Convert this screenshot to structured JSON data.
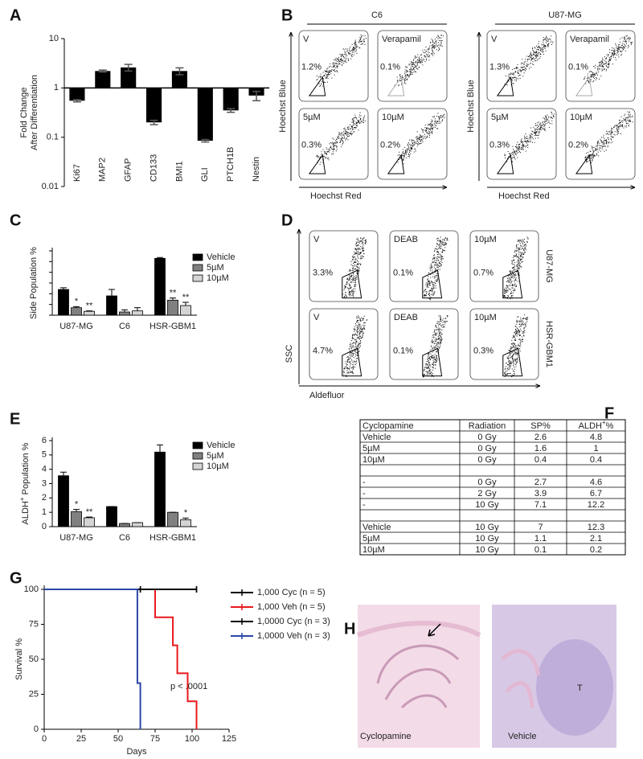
{
  "panel_labels": [
    "A",
    "B",
    "C",
    "D",
    "E",
    "F",
    "G",
    "H"
  ],
  "chart_data": [
    {
      "type": "bar",
      "scale": "log",
      "bar_base": 1,
      "color": "#000000",
      "categories": [
        "Ki67",
        "MAP2",
        "GFAP",
        "CD133",
        "BMI1",
        "GLI",
        "PTCH1B",
        "Nestin"
      ],
      "values": [
        0.55,
        2.2,
        2.6,
        0.2,
        2.2,
        0.085,
        0.35,
        0.7
      ],
      "errors": [
        0.03,
        0.1,
        0.4,
        0.02,
        0.35,
        0.005,
        0.03,
        0.15
      ],
      "ylabel": [
        "Fold Change",
        "After Differentiation"
      ],
      "ylim": [
        0.01,
        10
      ],
      "yticks": [
        0.01,
        0.1,
        1,
        10
      ]
    },
    {
      "type": "grouped_bar",
      "categories": [
        "U87-MG",
        "C6",
        "HSR-GBM1"
      ],
      "series": [
        {
          "name": "Vehicle",
          "color": "#000000",
          "values": [
            1.2,
            0.9,
            2.65
          ],
          "errors": [
            0.08,
            0.3,
            0.04
          ]
        },
        {
          "name": "5µM",
          "color": "#808080",
          "values": [
            0.35,
            0.15,
            0.7
          ],
          "errors": [
            0.05,
            0.1,
            0.1
          ],
          "stars": [
            "*",
            null,
            "**"
          ]
        },
        {
          "name": "10µM",
          "color": "#d4d4d4",
          "values": [
            0.18,
            0.2,
            0.45
          ],
          "errors": [
            0.02,
            0.15,
            0.15
          ],
          "stars": [
            "**",
            null,
            "**"
          ]
        }
      ],
      "ylabel": [
        "Side Population %"
      ],
      "ylim": [
        0,
        3
      ],
      "yticks": [
        0,
        0.5,
        1,
        1.5,
        2,
        2.5,
        3
      ],
      "ytick_labels": false
    },
    {
      "type": "grouped_bar",
      "categories": [
        "U87-MG",
        "C6",
        "HSR-GBM1"
      ],
      "series": [
        {
          "name": "Vehicle",
          "color": "#000000",
          "values": [
            3.55,
            1.4,
            5.2
          ],
          "errors": [
            0.25,
            0,
            0.5
          ]
        },
        {
          "name": "5µM",
          "color": "#808080",
          "values": [
            1.05,
            0.22,
            1.0
          ],
          "errors": [
            0.15,
            0,
            0
          ],
          "stars": [
            "*",
            null,
            null
          ]
        },
        {
          "name": "10µM",
          "color": "#d4d4d4",
          "values": [
            0.62,
            0.28,
            0.48
          ],
          "errors": [
            0.05,
            0,
            0.12
          ],
          "stars": [
            "**",
            null,
            "*"
          ]
        }
      ],
      "ylabel": [
        "ALDH",
        "+",
        " Population %"
      ],
      "ylim": [
        0,
        6
      ],
      "yticks": [
        0,
        1,
        2,
        3,
        4,
        5,
        6
      ],
      "ytick_labels": true
    },
    {
      "type": "line",
      "step": true,
      "xlabel": "Days",
      "ylabel": "Survival %",
      "annotation": "p < .0001",
      "series": [
        {
          "name": "1,000 Cyc (n = 5)",
          "color": "#000000",
          "x": [
            0,
            103
          ],
          "values": [
            100,
            100
          ],
          "censored": [
            65,
            103
          ]
        },
        {
          "name": "1,000 Veh (n = 5)",
          "color": "#e8191c",
          "x": [
            0,
            75,
            87,
            90,
            97,
            103
          ],
          "values": [
            100,
            80,
            60,
            40,
            20,
            0
          ]
        },
        {
          "name": "1,0000 Cyc (n = 3)",
          "color": "#000000",
          "x": [
            0,
            103
          ],
          "values": [
            100,
            100
          ],
          "censored": [
            65,
            103
          ]
        },
        {
          "name": "1,0000 Veh (n = 3)",
          "color": "#2b47a6",
          "x": [
            0,
            63,
            65
          ],
          "values": [
            100,
            33,
            0
          ]
        }
      ],
      "xlim": [
        0,
        125
      ],
      "xticks": [
        0,
        25,
        50,
        75,
        100,
        125
      ],
      "ylim": [
        0,
        100
      ],
      "yticks": [
        0,
        25,
        50,
        75,
        100
      ]
    }
  ],
  "flow_b": {
    "x_label": "Hoechst Red",
    "y_label": "Hoechst Blue",
    "groups": [
      {
        "title": "C6",
        "plots": [
          {
            "label": "V",
            "percent": "1.2%"
          },
          {
            "label": "Verapamil",
            "percent": "0.1%"
          },
          {
            "label": "5µM",
            "percent": "0.3%"
          },
          {
            "label": "10µM",
            "percent": "0.2%"
          }
        ]
      },
      {
        "title": "U87-MG",
        "plots": [
          {
            "label": "V",
            "percent": "1.3%"
          },
          {
            "label": "Verapamil",
            "percent": "0.1%"
          },
          {
            "label": "5µM",
            "percent": "0.3%"
          },
          {
            "label": "10µM",
            "percent": "0.2%"
          }
        ]
      }
    ]
  },
  "flow_d": {
    "x_label": "Aldefluor",
    "y_label": "SSC",
    "columns": [
      "V",
      "DEAB",
      "10µM"
    ],
    "rows": [
      {
        "name": "U87-MG",
        "percents": [
          "3.3%",
          "0.1%",
          "0.7%"
        ]
      },
      {
        "name": "HSR-GBM1",
        "percents": [
          "4.7%",
          "0.1%",
          "0.3%"
        ]
      }
    ]
  },
  "table_f": {
    "header": [
      "Cyclopamine",
      "Radiation",
      "SP%"
    ],
    "aldh_header": [
      "ALDH",
      "+",
      "%"
    ],
    "rows": [
      [
        "Vehicle",
        "0 Gy",
        "2.6",
        "4.8"
      ],
      [
        "5µM",
        "0 Gy",
        "1.6",
        "1"
      ],
      [
        "10µM",
        "0 Gy",
        "0.4",
        "0.4"
      ],
      null,
      [
        "-",
        "0 Gy",
        "2.7",
        "4.6"
      ],
      [
        "-",
        "2 Gy",
        "3.9",
        "6.7"
      ],
      [
        "-",
        "10 Gy",
        "7.1",
        "12.2"
      ],
      null,
      [
        "Vehicle",
        "10 Gy",
        "7",
        "12.3"
      ],
      [
        "5µM",
        "10 Gy",
        "1.1",
        "2.1"
      ],
      [
        "10µM",
        "10 Gy",
        "0.1",
        "0.2"
      ]
    ]
  },
  "images_h": {
    "labels": [
      "Cyclopamine",
      "Vehicle"
    ],
    "tumor_label": "T"
  }
}
